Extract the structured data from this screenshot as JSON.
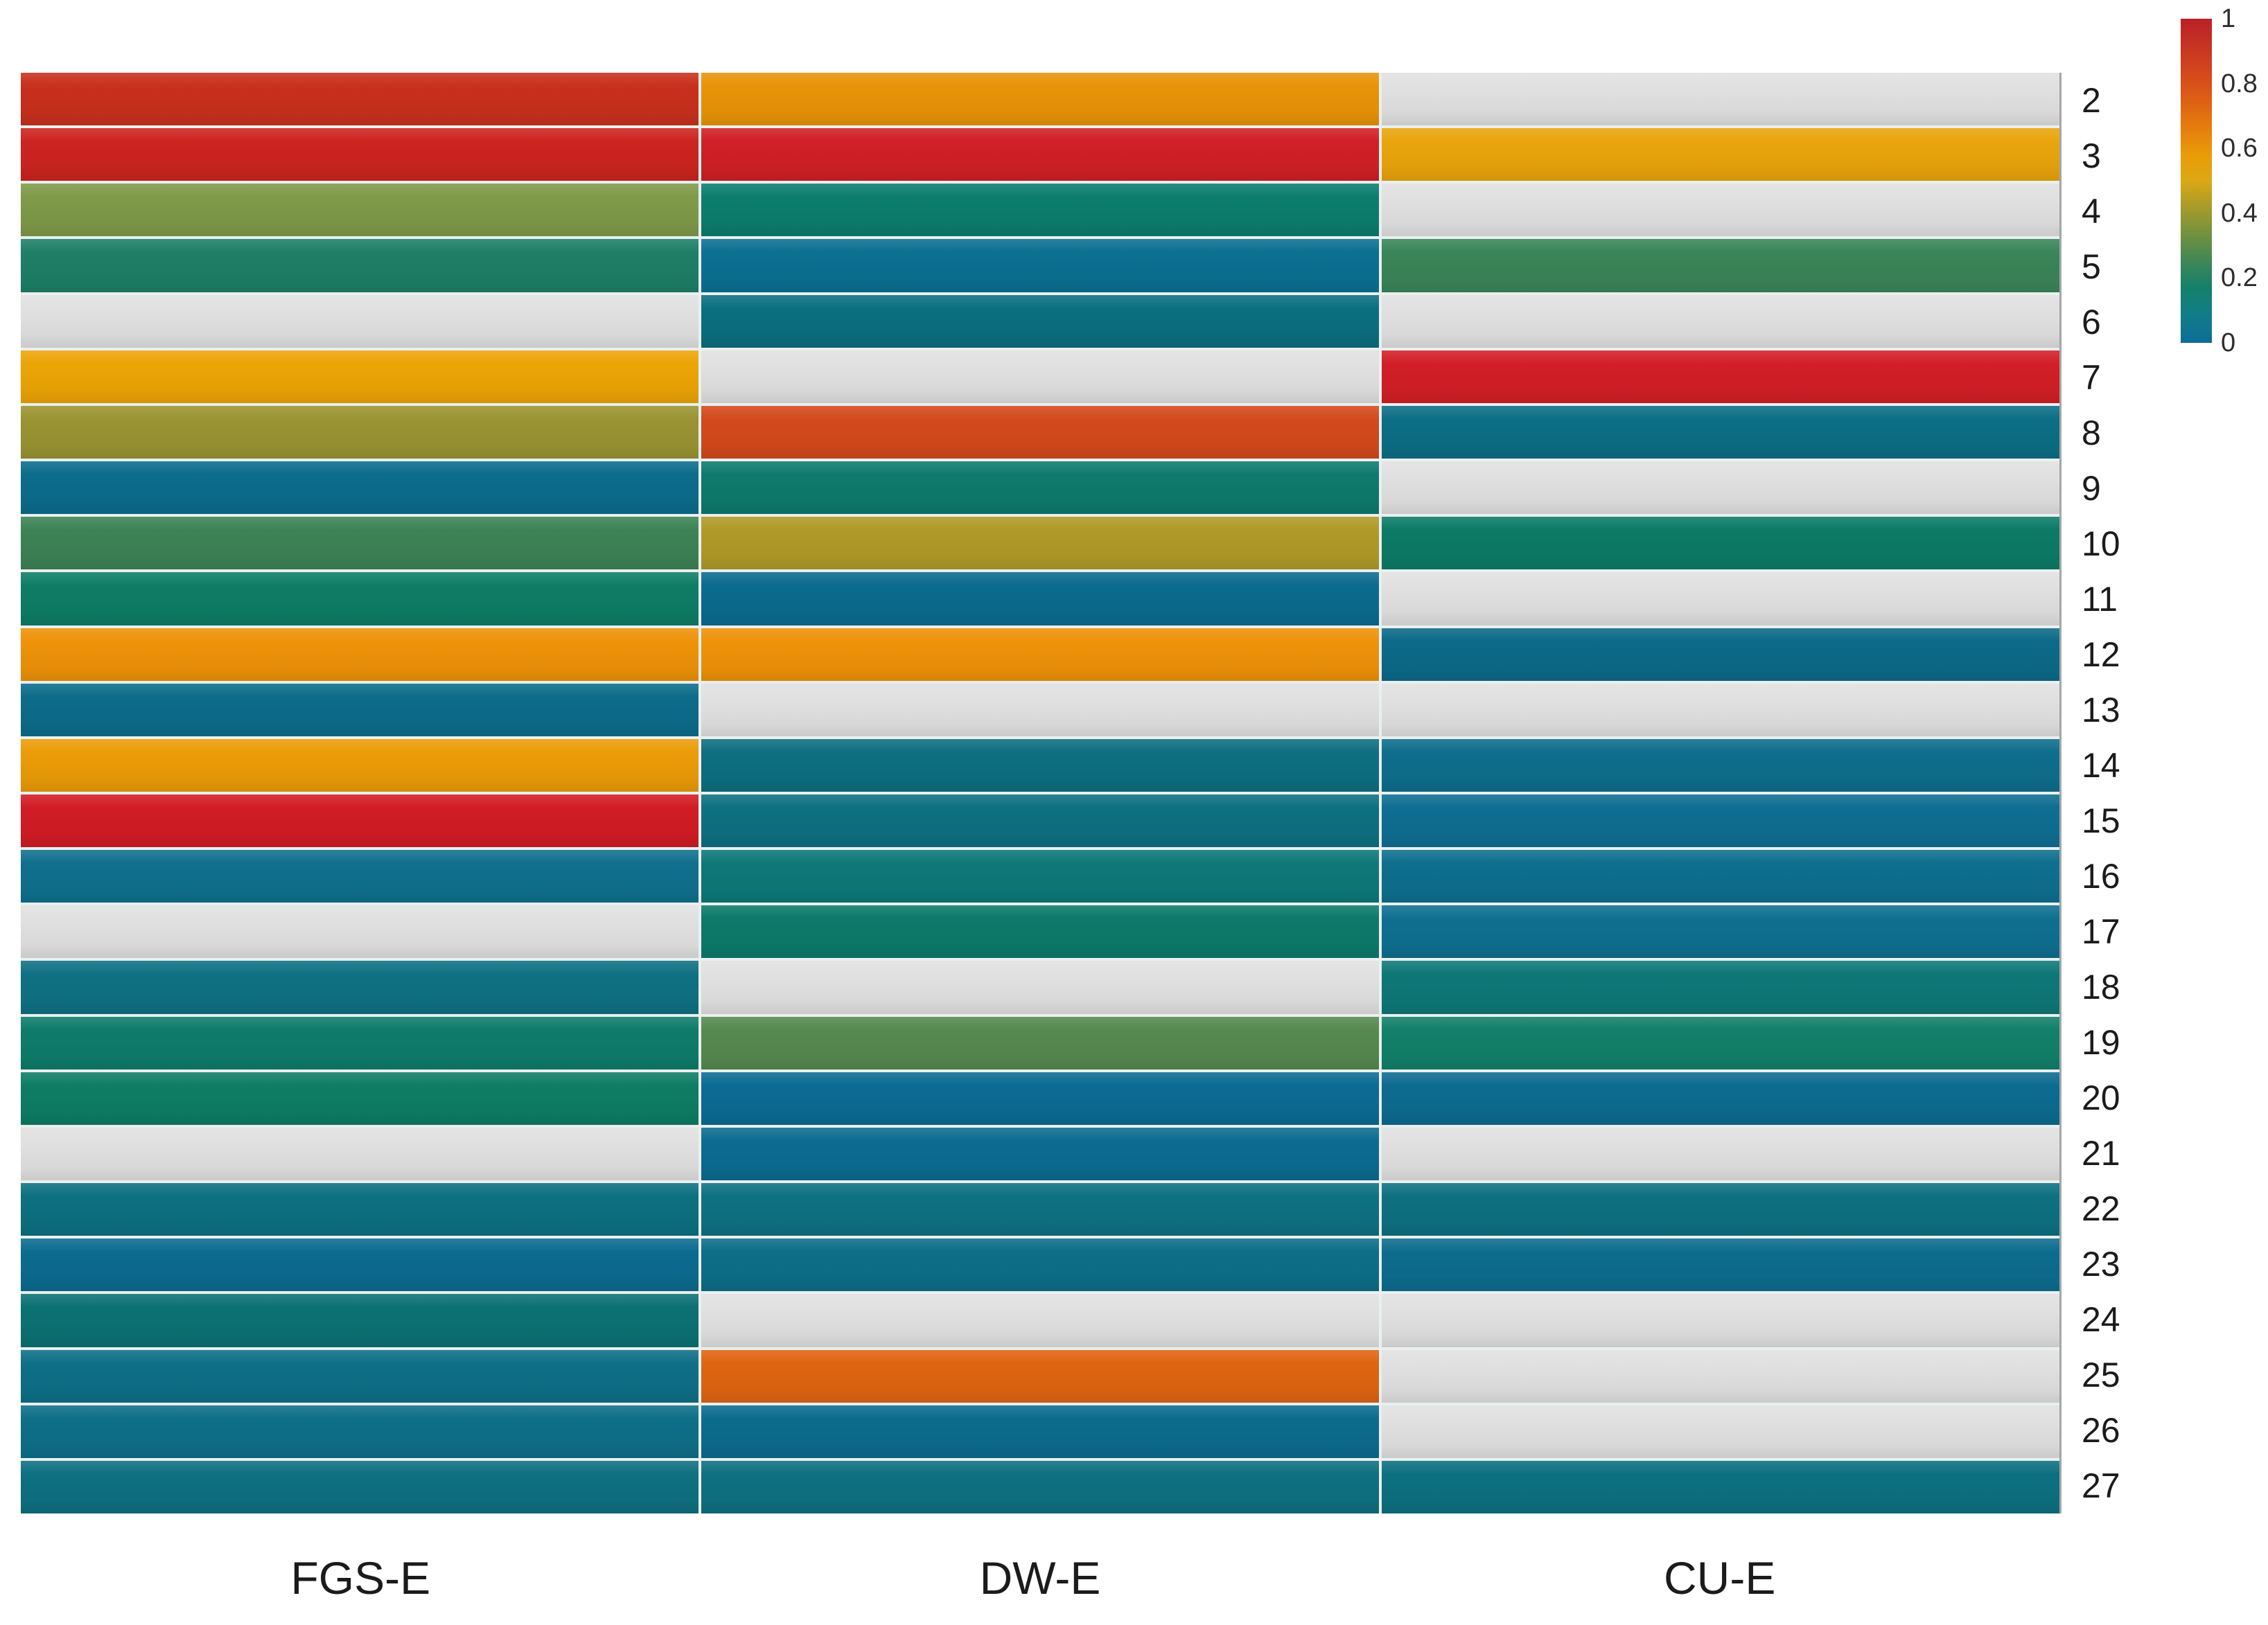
{
  "figure": {
    "background": "#ffffff",
    "text_color": "#1b1b1b"
  },
  "chart_data": {
    "type": "heatmap",
    "title": "",
    "xlabel": "",
    "ylabel": "",
    "columns": [
      "FGS-E",
      "DW-E",
      "CU-E"
    ],
    "rows": [
      "2",
      "3",
      "4",
      "5",
      "6",
      "7",
      "8",
      "9",
      "10",
      "11",
      "12",
      "13",
      "14",
      "15",
      "16",
      "17",
      "18",
      "19",
      "20",
      "21",
      "22",
      "23",
      "24",
      "25",
      "26",
      "27"
    ],
    "row_axis_side": "right",
    "missing_color": "#e0e1e0",
    "cell_colors": [
      [
        "#c9301d",
        "#e89408",
        null
      ],
      [
        "#cd2420",
        "#d02026",
        "#eaa50d"
      ],
      [
        "#7f9a49",
        "#0c7d6e",
        null
      ],
      [
        "#1e7f66",
        "#0b7092",
        "#3a8559"
      ],
      [
        null,
        "#0b6f7f",
        null
      ],
      [
        "#eda506",
        null,
        "#d21f26"
      ],
      [
        "#9a9433",
        "#d4491d",
        "#0c6e85"
      ],
      [
        "#0c6c8b",
        "#0e7a6d",
        null
      ],
      [
        "#3d8255",
        "#b09a28",
        "#0c7b66"
      ],
      [
        "#0e7d65",
        "#0b6b8e",
        null
      ],
      [
        "#ee9209",
        "#ee9209",
        "#0c6a88"
      ],
      [
        "#0d6c8a",
        null,
        null
      ],
      [
        "#eb9c08",
        "#0d6f80",
        "#0e6e8c"
      ],
      [
        "#d21c25",
        "#0e7080",
        "#0f6e92"
      ],
      [
        "#10708e",
        "#0e7878",
        "#0e6f8e"
      ],
      [
        null,
        "#0d7a6a",
        "#0f6f90"
      ],
      [
        "#0f7183",
        null,
        "#0e7877"
      ],
      [
        "#0e7c6a",
        "#56894f",
        "#12806a"
      ],
      [
        "#0e7d64",
        "#0c6b93",
        "#0d6b90"
      ],
      [
        null,
        "#0c6b92",
        null
      ],
      [
        "#0d7080",
        "#0e7181",
        "#0e7080"
      ],
      [
        "#0c6b90",
        "#0d6e88",
        "#0d6c8e"
      ],
      [
        "#0c7173",
        null,
        null
      ],
      [
        "#0e6f87",
        "#df6511",
        null
      ],
      [
        "#0e6f88",
        "#0c6b8d",
        null
      ],
      [
        "#0e7081",
        "#0e7080",
        "#0d7080"
      ]
    ],
    "values": [
      [
        0.9,
        0.6,
        null
      ],
      [
        0.92,
        0.95,
        0.55
      ],
      [
        0.35,
        0.1,
        null
      ],
      [
        0.16,
        0.02,
        0.24
      ],
      [
        null,
        0.05,
        null
      ],
      [
        0.52,
        null,
        0.95
      ],
      [
        0.4,
        0.78,
        0.04
      ],
      [
        0.02,
        0.1,
        null
      ],
      [
        0.25,
        0.45,
        0.12
      ],
      [
        0.12,
        0.01,
        null
      ],
      [
        0.6,
        0.6,
        0.03
      ],
      [
        0.03,
        null,
        null
      ],
      [
        0.57,
        0.05,
        0.03
      ],
      [
        0.95,
        0.05,
        0.02
      ],
      [
        0.03,
        0.07,
        0.03
      ],
      [
        null,
        0.11,
        0.03
      ],
      [
        0.06,
        null,
        0.08
      ],
      [
        0.11,
        0.28,
        0.15
      ],
      [
        0.12,
        0.01,
        0.01
      ],
      [
        null,
        0.01,
        null
      ],
      [
        0.05,
        0.05,
        0.05
      ],
      [
        0.01,
        0.03,
        0.01
      ],
      [
        0.07,
        null,
        null
      ],
      [
        0.03,
        0.7,
        null
      ],
      [
        0.03,
        0.01,
        null
      ],
      [
        0.05,
        0.05,
        0.05
      ]
    ],
    "colorbar": {
      "range": [
        0,
        1
      ],
      "ticks": [
        "1",
        "0.8",
        "0.6",
        "0.4",
        "0.2",
        "0"
      ],
      "tick_values": [
        1,
        0.8,
        0.6,
        0.4,
        0.2,
        0
      ],
      "position": "top-right",
      "gradient_stops": [
        {
          "t": 0.0,
          "color": "#0d6d97"
        },
        {
          "t": 0.04,
          "color": "#0f7492"
        },
        {
          "t": 0.1,
          "color": "#107f85"
        },
        {
          "t": 0.17,
          "color": "#14806a"
        },
        {
          "t": 0.25,
          "color": "#3f8657"
        },
        {
          "t": 0.33,
          "color": "#6f9140"
        },
        {
          "t": 0.42,
          "color": "#a89b2a"
        },
        {
          "t": 0.5,
          "color": "#dca814"
        },
        {
          "t": 0.58,
          "color": "#e99c08"
        },
        {
          "t": 0.66,
          "color": "#e67e0d"
        },
        {
          "t": 0.75,
          "color": "#dd5f15"
        },
        {
          "t": 0.85,
          "color": "#d1431f"
        },
        {
          "t": 1.0,
          "color": "#ba2028"
        }
      ]
    },
    "grid": "thin light separators between cells",
    "legend_position": "right-top"
  }
}
